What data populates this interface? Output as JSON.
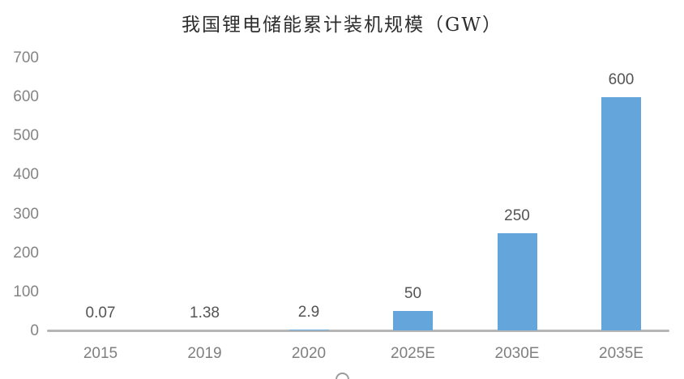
{
  "title": "我国锂电储能累计装机规模（GW）",
  "colors": {
    "bar": "#64a5db",
    "axis_line": "#b5b5b5",
    "tick_text": "#848484",
    "category_text": "#7f7f7f",
    "value_text": "#545454",
    "title_text": "#2e2e2e"
  },
  "chart_data": {
    "type": "bar",
    "title": "我国锂电储能累计装机规模（GW）",
    "categories": [
      "2015",
      "2019",
      "2020",
      "2025E",
      "2030E",
      "2035E"
    ],
    "values": [
      0.07,
      1.38,
      2.9,
      50,
      250,
      600
    ],
    "value_labels": [
      "0.07",
      "1.38",
      "2.9",
      "50",
      "250",
      "600"
    ],
    "xlabel": "",
    "ylabel": "",
    "ylim": [
      0,
      700
    ],
    "y_ticks": [
      0,
      100,
      200,
      300,
      400,
      500,
      600,
      700
    ],
    "grid": false,
    "legend": false,
    "bar_color": "#64a5db"
  }
}
